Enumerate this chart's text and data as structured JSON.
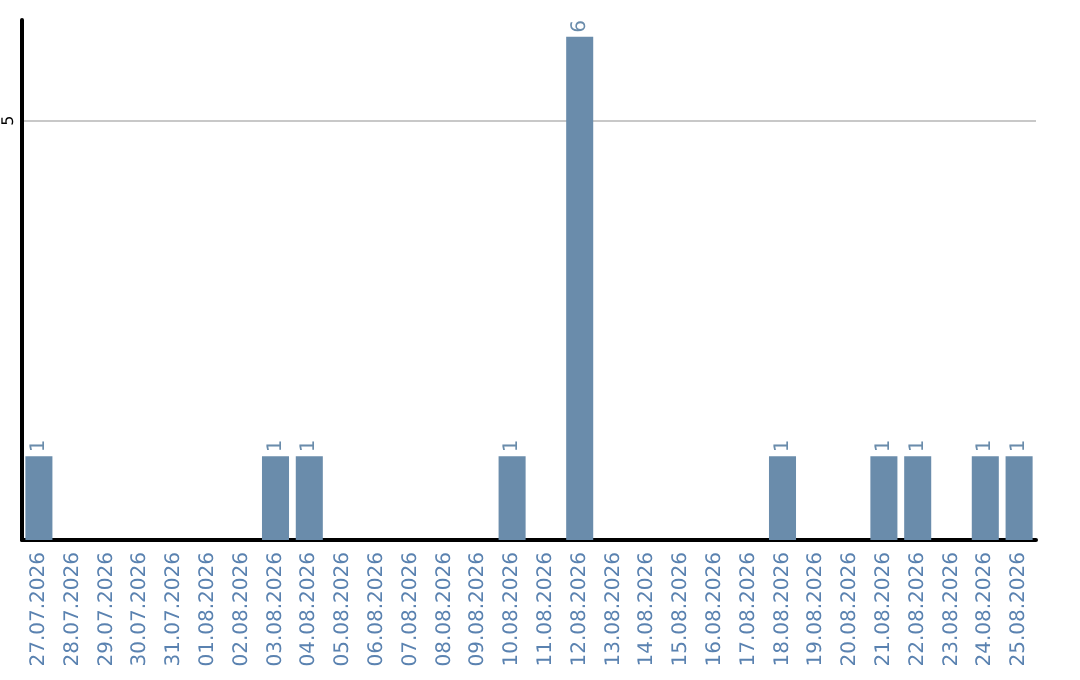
{
  "chart_data": {
    "type": "bar",
    "categories": [
      "27.07.2026",
      "28.07.2026",
      "29.07.2026",
      "30.07.2026",
      "31.07.2026",
      "01.08.2026",
      "02.08.2026",
      "03.08.2026",
      "04.08.2026",
      "05.08.2026",
      "06.08.2026",
      "07.08.2026",
      "08.08.2026",
      "09.08.2026",
      "10.08.2026",
      "11.08.2026",
      "12.08.2026",
      "13.08.2026",
      "14.08.2026",
      "15.08.2026",
      "16.08.2026",
      "17.08.2026",
      "18.08.2026",
      "19.08.2026",
      "20.08.2026",
      "21.08.2026",
      "22.08.2026",
      "23.08.2026",
      "24.08.2026",
      "25.08.2026"
    ],
    "values": [
      1,
      0,
      0,
      0,
      0,
      0,
      0,
      1,
      1,
      0,
      0,
      0,
      0,
      0,
      1,
      0,
      6,
      0,
      0,
      0,
      0,
      0,
      1,
      0,
      0,
      1,
      1,
      0,
      1,
      1
    ],
    "value_labels": [
      "1",
      null,
      null,
      null,
      null,
      null,
      null,
      "1",
      "1",
      null,
      null,
      null,
      null,
      null,
      "1",
      null,
      "6",
      null,
      null,
      null,
      null,
      null,
      "1",
      null,
      null,
      "1",
      "1",
      null,
      "1",
      "1"
    ],
    "color": "#6a8cab",
    "ylim": [
      0,
      6.2
    ],
    "yticks": [
      5
    ],
    "grid": "y"
  }
}
